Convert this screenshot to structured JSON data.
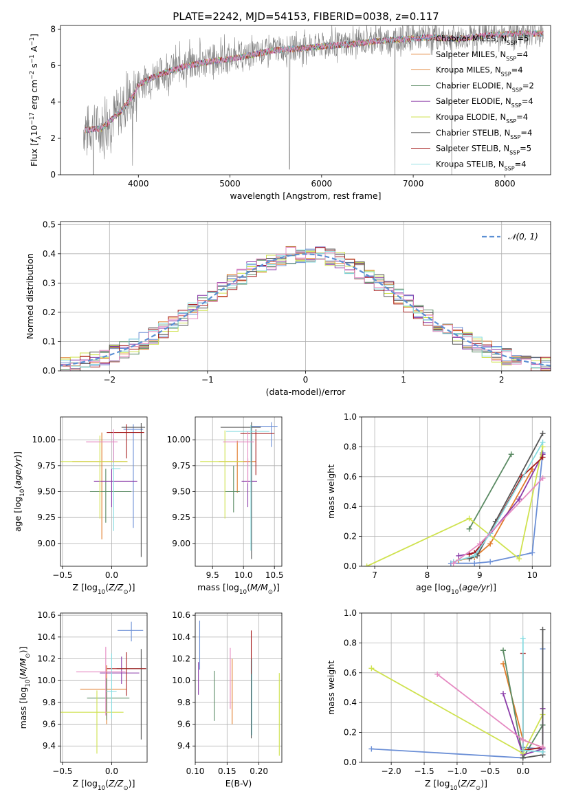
{
  "title": "PLATE=2242, MJD=54153, FIBERID=0038, z=0.117",
  "colors": {
    "c0": "#6b8fd6",
    "c1": "#e07b2a",
    "c2": "#5a8a63",
    "c3": "#8a3aa8",
    "c4": "#cfe24f",
    "c5": "#555555",
    "c6": "#a51c1c",
    "c7": "#86dbe0",
    "c8": "#e58ac2",
    "gray": "#808080",
    "gauss": "#5b8fd3"
  },
  "chart_data": [
    {
      "id": "spectrum",
      "type": "line",
      "xlabel": "wavelength [Angstrom, rest frame]",
      "ylabel": "Flux [f_λ10^-17 erg cm^-2 s^-1 A^-1]",
      "xlim": [
        3150,
        8500
      ],
      "ylim": [
        0,
        8.2
      ],
      "xticks": [
        4000,
        5000,
        6000,
        7000,
        8000
      ],
      "yticks": [
        0,
        2,
        4,
        6,
        8
      ],
      "grid": false,
      "legend_position": "top-right",
      "legend": [
        {
          "label": "Chabrier MILES, N_SSP=5",
          "color": "#6b8fd6"
        },
        {
          "label": "Salpeter MILES, N_SSP=4",
          "color": "#e07b2a"
        },
        {
          "label": "Kroupa MILES, N_SSP=4",
          "color": "#e07b2a"
        },
        {
          "label": "Chabrier ELODIE, N_SSP=2",
          "color": "#5a8a63"
        },
        {
          "label": "Salpeter ELODIE, N_SSP=4",
          "color": "#8a3aa8"
        },
        {
          "label": "Kroupa ELODIE, N_SSP=4",
          "color": "#cfe24f"
        },
        {
          "label": "Chabrier STELIB, N_SSP=4",
          "color": "#555555"
        },
        {
          "label": "Salpeter STELIB, N_SSP=5",
          "color": "#a51c1c"
        },
        {
          "label": "Kroupa STELIB, N_SSP=4",
          "color": "#86dbe0"
        }
      ],
      "continuum": {
        "x": [
          3400,
          3600,
          3800,
          3950,
          4000,
          4200,
          4500,
          4800,
          5000,
          5200,
          5500,
          5800,
          6000,
          6300,
          6600,
          6900,
          7200,
          7500,
          7800,
          8100,
          8400
        ],
        "y": [
          2.5,
          2.6,
          3.5,
          4.4,
          5.0,
          5.5,
          6.0,
          6.3,
          6.4,
          6.6,
          6.9,
          7.0,
          7.1,
          7.2,
          7.4,
          7.5,
          7.6,
          7.5,
          7.7,
          7.8,
          7.8
        ]
      },
      "dips": [
        {
          "x": 3510,
          "y": 0
        },
        {
          "x": 3935,
          "y": 0.5
        },
        {
          "x": 5650,
          "y": 0.3
        },
        {
          "x": 6800,
          "y": 0
        },
        {
          "x": 7420,
          "y": 0
        }
      ]
    },
    {
      "id": "residuals",
      "type": "histogram",
      "xlabel": "(data-model)/error",
      "ylabel": "Normed distribution",
      "xlim": [
        -2.5,
        2.5
      ],
      "ylim": [
        0,
        0.51
      ],
      "xticks": [
        -2,
        -1,
        0,
        1,
        2
      ],
      "yticks": [
        0.0,
        0.1,
        0.2,
        0.3,
        0.4,
        0.5
      ],
      "grid": true,
      "legend_position": "top-right",
      "gauss_label": "𝒩(0, 1)",
      "bin_width": 0.1
    },
    {
      "id": "age_vs_Z",
      "type": "errorbar",
      "xlabel": "Z [log10(Z/Z⊙)]",
      "ylabel": "age  [log10(age/yr)]",
      "xlim": [
        -0.52,
        0.36
      ],
      "ylim": [
        8.78,
        10.22
      ],
      "xticks": [
        -0.5,
        0.0,
        0.5
      ],
      "yticks": [
        9.0,
        9.25,
        9.5,
        9.75,
        10.0
      ],
      "grid": true,
      "points": [
        {
          "x": 0.22,
          "y": 10.1,
          "xerr": [
            0.1,
            0.1
          ],
          "yerr": [
            0.95,
            0.05
          ],
          "c": "c0"
        },
        {
          "x": -0.1,
          "y": 9.79,
          "xerr": [
            0.3,
            0.26
          ],
          "yerr": [
            0.75,
            0.28
          ],
          "c": "c1"
        },
        {
          "x": -0.06,
          "y": 9.5,
          "xerr": [
            0.16,
            0.26
          ],
          "yerr": [
            0.3,
            0.22
          ],
          "c": "c2"
        },
        {
          "x": 0.0,
          "y": 9.6,
          "xerr": [
            0.18,
            0.26
          ],
          "yerr": [
            0.25,
            0.12
          ],
          "c": "c3"
        },
        {
          "x": -0.12,
          "y": 9.79,
          "xerr": [
            0.4,
            0.28
          ],
          "yerr": [
            0.55,
            0.25
          ],
          "c": "c4"
        },
        {
          "x": 0.3,
          "y": 10.12,
          "xerr": [
            0.2,
            0.04
          ],
          "yerr": [
            1.25,
            0.04
          ],
          "c": "c5"
        },
        {
          "x": 0.15,
          "y": 10.07,
          "xerr": [
            0.2,
            0.18
          ],
          "yerr": [
            0.25,
            0.08
          ],
          "c": "c6"
        },
        {
          "x": 0.02,
          "y": 9.72,
          "xerr": [
            0.02,
            0.07
          ],
          "yerr": [
            0.6,
            0.3
          ],
          "c": "c7"
        },
        {
          "x": 0.02,
          "y": 9.98,
          "xerr": [
            0.28,
            0.04
          ],
          "yerr": [
            0.2,
            0.12
          ],
          "c": "c8"
        }
      ]
    },
    {
      "id": "age_vs_mass",
      "type": "errorbar",
      "xlabel": "mass [log10(M/M⊙)]",
      "ylabel": "",
      "xlim": [
        9.22,
        10.62
      ],
      "ylim": [
        8.78,
        10.22
      ],
      "xticks": [
        9.5,
        10.0,
        10.5
      ],
      "yticks": [
        9.0,
        9.25,
        9.5,
        9.75,
        10.0
      ],
      "grid": true,
      "points": [
        {
          "x": 10.45,
          "y": 10.13,
          "xerr": [
            0.33,
            0.1
          ],
          "yerr": [
            0.2,
            0.04
          ],
          "c": "c0"
        },
        {
          "x": 9.9,
          "y": 9.79,
          "xerr": [
            0.3,
            0.3
          ],
          "yerr": [
            0.3,
            0.2
          ],
          "c": "c1"
        },
        {
          "x": 9.84,
          "y": 9.5,
          "xerr": [
            0.14,
            0.1
          ],
          "yerr": [
            0.2,
            0.25
          ],
          "c": "c2"
        },
        {
          "x": 10.07,
          "y": 9.6,
          "xerr": [
            0.1,
            0.15
          ],
          "yerr": [
            0.25,
            0.22
          ],
          "c": "c3"
        },
        {
          "x": 9.7,
          "y": 9.79,
          "xerr": [
            0.4,
            0.3
          ],
          "yerr": [
            0.55,
            0.3
          ],
          "c": "c4"
        },
        {
          "x": 10.13,
          "y": 10.12,
          "xerr": [
            0.5,
            0.15
          ],
          "yerr": [
            1.27,
            0.05
          ],
          "c": "c5"
        },
        {
          "x": 10.2,
          "y": 10.06,
          "xerr": [
            0.25,
            0.3
          ],
          "yerr": [
            0.4,
            0.04
          ],
          "c": "c6"
        },
        {
          "x": 10.12,
          "y": 10.08,
          "xerr": [
            0.4,
            0.3
          ],
          "yerr": [
            1.15,
            0.06
          ],
          "c": "c7"
        },
        {
          "x": 10.07,
          "y": 9.98,
          "xerr": [
            0.4,
            0.1
          ],
          "yerr": [
            0.4,
            0.1
          ],
          "c": "c8"
        }
      ]
    },
    {
      "id": "weight_vs_age",
      "type": "line",
      "xlabel": "age  [log10(age/yr)]",
      "ylabel": "mass weight",
      "xlim": [
        6.75,
        10.35
      ],
      "ylim": [
        0,
        1.0
      ],
      "xticks": [
        7,
        8,
        9,
        10
      ],
      "yticks": [
        0.0,
        0.2,
        0.4,
        0.6,
        0.8,
        1.0
      ],
      "grid": true,
      "series": [
        {
          "c": "c0",
          "x": [
            8.45,
            8.9,
            9.2,
            10.0,
            10.2
          ],
          "y": [
            0.02,
            0.02,
            0.03,
            0.09,
            0.76
          ]
        },
        {
          "c": "c1",
          "x": [
            8.6,
            8.9,
            9.2,
            10.0
          ],
          "y": [
            0.04,
            0.06,
            0.15,
            0.65
          ]
        },
        {
          "c": "c2",
          "x": [
            8.8,
            9.6
          ],
          "y": [
            0.25,
            0.75
          ]
        },
        {
          "c": "c3",
          "x": [
            8.6,
            8.9,
            9.75,
            10.2
          ],
          "y": [
            0.07,
            0.09,
            0.45,
            0.75
          ]
        },
        {
          "c": "c4",
          "x": [
            6.85,
            8.8,
            9.75,
            10.2
          ],
          "y": [
            0.0,
            0.32,
            0.05,
            0.8
          ]
        },
        {
          "c": "c5",
          "x": [
            8.8,
            8.95,
            9.3,
            10.2
          ],
          "y": [
            0.05,
            0.07,
            0.3,
            0.89
          ]
        },
        {
          "c": "c6",
          "x": [
            8.8,
            8.9,
            9.2,
            9.8,
            10.2
          ],
          "y": [
            0.08,
            0.09,
            0.22,
            0.6,
            0.73
          ]
        },
        {
          "c": "c7",
          "x": [
            8.5,
            8.9,
            9.2,
            10.2
          ],
          "y": [
            0.03,
            0.07,
            0.22,
            0.83
          ]
        },
        {
          "c": "c8",
          "x": [
            8.5,
            9.0,
            10.2
          ],
          "y": [
            0.02,
            0.15,
            0.59
          ]
        }
      ]
    },
    {
      "id": "mass_vs_Z",
      "type": "errorbar",
      "xlabel": "Z [log10(Z/Z⊙)]",
      "ylabel": "mass [log10(M/M⊙)]",
      "xlim": [
        -0.52,
        0.36
      ],
      "ylim": [
        9.25,
        10.62
      ],
      "xticks": [
        -0.5,
        0.0,
        0.5
      ],
      "yticks": [
        9.4,
        9.6,
        9.8,
        10.0,
        10.2,
        10.4,
        10.6
      ],
      "grid": true,
      "points": [
        {
          "x": 0.2,
          "y": 10.46,
          "xerr": [
            0.14,
            0.12
          ],
          "yerr": [
            0.1,
            0.08
          ],
          "c": "c0"
        },
        {
          "x": -0.05,
          "y": 9.92,
          "xerr": [
            0.27,
            0.2
          ],
          "yerr": [
            0.32,
            0.22
          ],
          "c": "c1"
        },
        {
          "x": -0.05,
          "y": 9.84,
          "xerr": [
            0.2,
            0.23
          ],
          "yerr": [
            0.2,
            0.18
          ],
          "c": "c2"
        },
        {
          "x": 0.1,
          "y": 10.07,
          "xerr": [
            0.22,
            0.18
          ],
          "yerr": [
            0.1,
            0.15
          ],
          "c": "c3"
        },
        {
          "x": -0.15,
          "y": 9.71,
          "xerr": [
            0.37,
            0.27
          ],
          "yerr": [
            0.38,
            0.2
          ],
          "c": "c4"
        },
        {
          "x": 0.3,
          "y": 10.11,
          "xerr": [
            0.25,
            0.05
          ],
          "yerr": [
            0.65,
            0.18
          ],
          "c": "c5"
        },
        {
          "x": 0.15,
          "y": 10.11,
          "xerr": [
            0.2,
            0.2
          ],
          "yerr": [
            0.25,
            0.15
          ],
          "c": "c6"
        },
        {
          "x": 0.0,
          "y": 9.9,
          "xerr": [
            0.05,
            0.05
          ],
          "yerr": [
            0.25,
            0.35
          ],
          "c": "c7"
        },
        {
          "x": -0.06,
          "y": 10.08,
          "xerr": [
            0.3,
            0.2
          ],
          "yerr": [
            0.4,
            0.23
          ],
          "c": "c8"
        }
      ]
    },
    {
      "id": "mass_vs_ebv",
      "type": "errorbar",
      "xlabel": "E(B-V)",
      "ylabel": "",
      "xlim": [
        0.1,
        0.236
      ],
      "ylim": [
        9.25,
        10.62
      ],
      "xticks": [
        0.1,
        0.15,
        0.2
      ],
      "yticks": [
        9.4,
        9.6,
        9.8,
        10.0,
        10.2,
        10.4,
        10.6
      ],
      "grid": true,
      "points": [
        {
          "x": 0.107,
          "y": 10.28,
          "yerr": [
            0.18,
            0.27
          ],
          "c": "c0"
        },
        {
          "x": 0.158,
          "y": 9.9,
          "yerr": [
            0.3,
            0.3
          ],
          "c": "c1"
        },
        {
          "x": 0.13,
          "y": 9.86,
          "yerr": [
            0.23,
            0.23
          ],
          "c": "c2"
        },
        {
          "x": 0.105,
          "y": 10.02,
          "yerr": [
            0.15,
            0.15
          ],
          "c": "c3"
        },
        {
          "x": 0.232,
          "y": 9.69,
          "yerr": [
            0.38,
            0.38
          ],
          "c": "c4"
        },
        {
          "x": 0.188,
          "y": 9.8,
          "yerr": [
            0.33,
            0.38
          ],
          "c": "c5"
        },
        {
          "x": 0.188,
          "y": 10.26,
          "yerr": [
            0.2,
            0.2
          ],
          "c": "c6"
        },
        {
          "x": 0.189,
          "y": 9.85,
          "yerr": [
            0.35,
            0.35
          ],
          "c": "c7"
        },
        {
          "x": 0.155,
          "y": 10.02,
          "yerr": [
            0.28,
            0.28
          ],
          "c": "c8"
        }
      ]
    },
    {
      "id": "weight_vs_Z",
      "type": "line",
      "xlabel": "Z [log10(Z/Z⊙)]",
      "ylabel": "mass weight",
      "xlim": [
        -2.45,
        0.42
      ],
      "ylim": [
        0,
        1.0
      ],
      "xticks": [
        -2.0,
        -1.5,
        -1.0,
        -0.5,
        0.0
      ],
      "yticks": [
        0.0,
        0.2,
        0.4,
        0.6,
        0.8,
        1.0
      ],
      "grid": true,
      "series": [
        {
          "c": "c0",
          "x": [
            -2.3,
            0.0,
            0.0,
            0.3,
            0.3
          ],
          "y": [
            0.09,
            0.03,
            0.1,
            0.09,
            0.76
          ]
        },
        {
          "c": "c1",
          "x": [
            -0.3,
            0.0,
            0.3
          ],
          "y": [
            0.66,
            0.15,
            0.1
          ]
        },
        {
          "c": "c2",
          "x": [
            -0.3,
            0.0,
            0.3
          ],
          "y": [
            0.75,
            0.03,
            0.25
          ]
        },
        {
          "c": "c3",
          "x": [
            -0.3,
            0.0,
            0.3,
            0.3
          ],
          "y": [
            0.46,
            0.05,
            0.09,
            0.36
          ]
        },
        {
          "c": "c4",
          "x": [
            -2.3,
            0.0,
            0.3
          ],
          "y": [
            0.63,
            0.06,
            0.32
          ]
        },
        {
          "c": "c5",
          "x": [
            0.0,
            0.3,
            0.3
          ],
          "y": [
            0.03,
            0.05,
            0.89
          ]
        },
        {
          "c": "c6",
          "x": [
            0.0,
            0.0,
            0.3
          ],
          "y": [
            0.73,
            0.08,
            0.1
          ]
        },
        {
          "c": "c7",
          "x": [
            0.0,
            0.0,
            0.3
          ],
          "y": [
            0.83,
            0.08,
            0.07
          ]
        },
        {
          "c": "c8",
          "x": [
            -1.3,
            0.0,
            0.3
          ],
          "y": [
            0.59,
            0.15,
            0.1
          ]
        }
      ]
    }
  ]
}
